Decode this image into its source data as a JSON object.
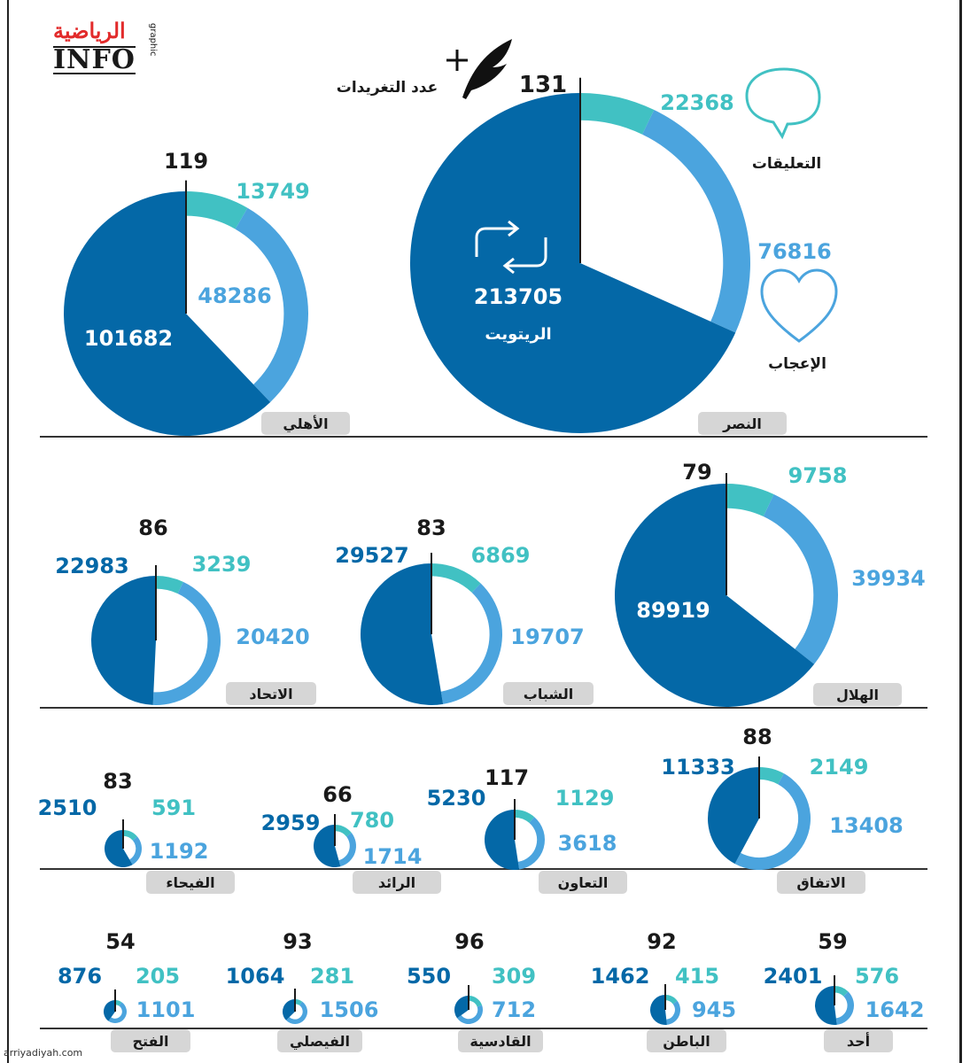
{
  "brand": {
    "arabic_name": "الرياضية",
    "info": "INFO",
    "sub": "graphic"
  },
  "footer": {
    "url": "arriyadiyah.com"
  },
  "legend": {
    "tweets_label": "عدد التغريدات",
    "comments_label": "التعليقات",
    "likes_label": "الإعجاب",
    "retweets_label": "الريتويت"
  },
  "colors": {
    "retweets": "#0468a7",
    "likes": "#4ba4de",
    "comments": "#41c1c3",
    "label_bg": "#d6d6d6",
    "text_dark": "#1a1a1a"
  },
  "icons": [
    "pen-icon",
    "plus-icon",
    "speech-bubble-icon",
    "heart-icon",
    "retweet-icon"
  ],
  "chart_data": {
    "type": "pie",
    "series_order": [
      "retweets",
      "likes",
      "comments"
    ],
    "clubs": [
      {
        "club": "النصر",
        "tweets": 131,
        "retweets": 213705,
        "likes": 76816,
        "comments": 22368
      },
      {
        "club": "الأهلي",
        "tweets": 119,
        "retweets": 101682,
        "likes": 48286,
        "comments": 13749
      },
      {
        "club": "الهلال",
        "tweets": 79,
        "retweets": 89919,
        "likes": 39934,
        "comments": 9758
      },
      {
        "club": "الشباب",
        "tweets": 83,
        "retweets": 29527,
        "likes": 19707,
        "comments": 6869
      },
      {
        "club": "الاتحاد",
        "tweets": 86,
        "retweets": 22983,
        "likes": 20420,
        "comments": 3239
      },
      {
        "club": "الاتفاق",
        "tweets": 88,
        "retweets": 11333,
        "likes": 13408,
        "comments": 2149
      },
      {
        "club": "التعاون",
        "tweets": 117,
        "retweets": 5230,
        "likes": 3618,
        "comments": 1129
      },
      {
        "club": "الرائد",
        "tweets": 66,
        "retweets": 2959,
        "likes": 1714,
        "comments": 780
      },
      {
        "club": "الفيحاء",
        "tweets": 83,
        "retweets": 2510,
        "likes": 1192,
        "comments": 591
      },
      {
        "club": "أحد",
        "tweets": 59,
        "retweets": 2401,
        "likes": 1642,
        "comments": 576
      },
      {
        "club": "الباطن",
        "tweets": 92,
        "retweets": 1462,
        "likes": 945,
        "comments": 415
      },
      {
        "club": "القادسية",
        "tweets": 96,
        "retweets": 550,
        "likes": 712,
        "comments": 309
      },
      {
        "club": "الفيصلي",
        "tweets": 93,
        "retweets": 1064,
        "likes": 1506,
        "comments": 281
      },
      {
        "club": "الفتح",
        "tweets": 54,
        "retweets": 876,
        "likes": 1101,
        "comments": 205
      }
    ]
  }
}
